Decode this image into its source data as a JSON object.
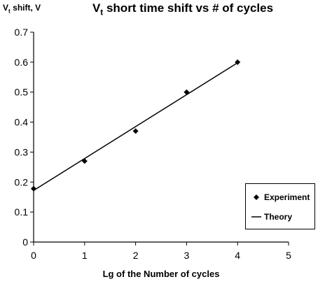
{
  "chart_data": {
    "type": "scatter",
    "title_parts": [
      "V",
      "t",
      " short time shift vs # of cycles"
    ],
    "ylabel_parts": [
      "V",
      "t",
      " shift, V"
    ],
    "xlabel": "Lg of the Number of cycles",
    "xlim": [
      0,
      5
    ],
    "ylim": [
      0,
      0.7
    ],
    "x_ticks": [
      "0",
      "1",
      "2",
      "3",
      "4",
      "5"
    ],
    "y_ticks": [
      "0",
      "0.1",
      "0.2",
      "0.3",
      "0.4",
      "0.5",
      "0.6",
      "0.7"
    ],
    "grid": false,
    "legend_position": "bottom-right",
    "series": [
      {
        "name": "Experiment",
        "kind": "markers",
        "marker": "diamond",
        "x": [
          0,
          1,
          2,
          3,
          4
        ],
        "y": [
          0.178,
          0.27,
          0.37,
          0.5,
          0.6
        ]
      },
      {
        "name": "Theory",
        "kind": "line",
        "x": [
          0,
          4
        ],
        "y": [
          0.172,
          0.598
        ]
      }
    ]
  }
}
